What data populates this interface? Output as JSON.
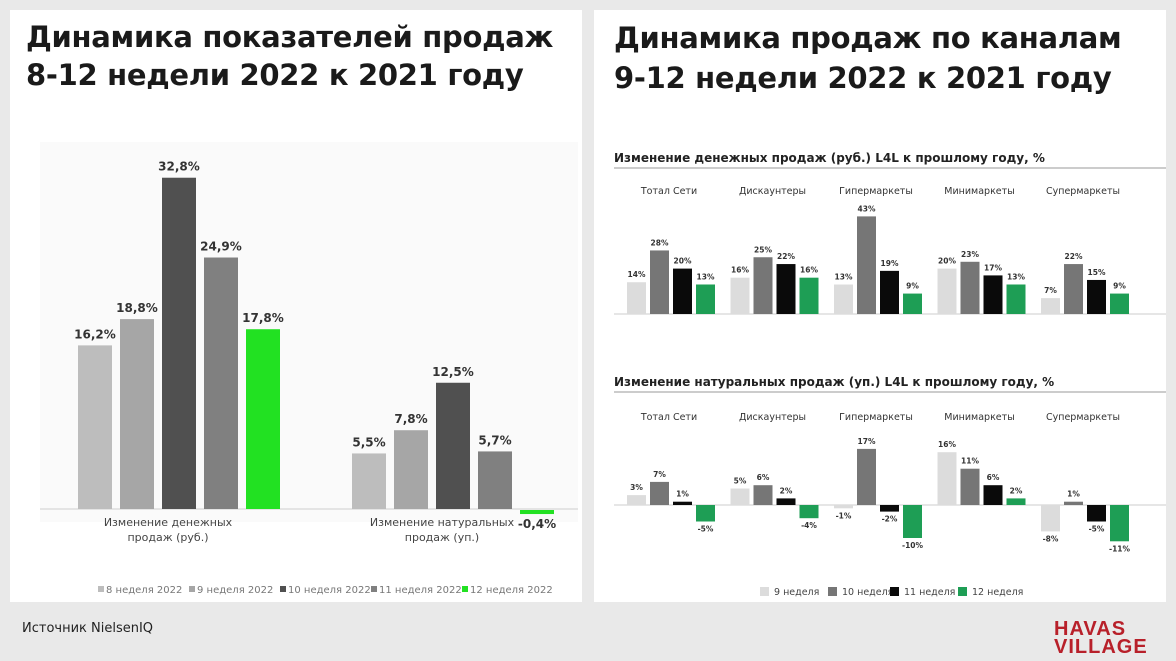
{
  "left_title": [
    "Динамика показателей продаж",
    "8-12 недели 2022 к 2021 году"
  ],
  "right_title": [
    "Динамика продаж по каналам",
    "9-12 недели 2022 к 2021 году"
  ],
  "source": "Источник NielsenIQ",
  "logo": [
    "HAVAS",
    "VILLAGE"
  ],
  "colors": {
    "w8": "#bdbdbd",
    "w9": "#a6a6a6",
    "w10": "#505050",
    "w11": "#808080",
    "w12": "#22e122",
    "rw9": "#dcdcdc",
    "rw10": "#767676",
    "rw11": "#0a0a0a",
    "rw12": "#1e9e55"
  },
  "chart_data": [
    {
      "type": "bar",
      "categories": [
        "Изменение денежных продаж (руб.)",
        "Изменение натуральных продаж (уп.)"
      ],
      "series": [
        {
          "name": "8 неделя 2022",
          "values": [
            16.2,
            5.5
          ],
          "labels": [
            "16,2%",
            "5,5%"
          ]
        },
        {
          "name": "9 неделя 2022",
          "values": [
            18.8,
            7.8
          ],
          "labels": [
            "18,8%",
            "7,8%"
          ]
        },
        {
          "name": "10 неделя 2022",
          "values": [
            32.8,
            12.5
          ],
          "labels": [
            "32,8%",
            "12,5%"
          ]
        },
        {
          "name": "11 неделя 2022",
          "values": [
            24.9,
            5.7
          ],
          "labels": [
            "24,9%",
            "5,7%"
          ]
        },
        {
          "name": "12 неделя 2022",
          "values": [
            17.8,
            -0.4
          ],
          "labels": [
            "17,8%",
            "-0,4%"
          ]
        }
      ],
      "legend_position": "bottom"
    },
    {
      "type": "bar",
      "title": "Изменение денежных продаж (руб.) L4L к прошлому году, %",
      "categories": [
        "Тотал Сети",
        "Дискаунтеры",
        "Гипермаркеты",
        "Минимаркеты",
        "Супермаркеты"
      ],
      "series": [
        {
          "name": "9 неделя",
          "values": [
            14,
            16,
            13,
            20,
            7
          ]
        },
        {
          "name": "10 неделя",
          "values": [
            28,
            25,
            43,
            23,
            22
          ]
        },
        {
          "name": "11 неделя",
          "values": [
            20,
            22,
            19,
            17,
            15
          ]
        },
        {
          "name": "12 неделя",
          "values": [
            13,
            16,
            9,
            13,
            9
          ]
        }
      ]
    },
    {
      "type": "bar",
      "title": "Изменение натуральных продаж (уп.) L4L к прошлому году, %",
      "categories": [
        "Тотал Сети",
        "Дискаунтеры",
        "Гипермаркеты",
        "Минимаркеты",
        "Супермаркеты"
      ],
      "series": [
        {
          "name": "9 неделя",
          "values": [
            3,
            5,
            -1,
            16,
            -8
          ]
        },
        {
          "name": "10 неделя",
          "values": [
            7,
            6,
            17,
            11,
            1
          ]
        },
        {
          "name": "11 неделя",
          "values": [
            1,
            2,
            -2,
            6,
            -5
          ]
        },
        {
          "name": "12 неделя",
          "values": [
            -5,
            -4,
            -10,
            2,
            -11
          ]
        }
      ],
      "legend_position": "bottom"
    }
  ]
}
